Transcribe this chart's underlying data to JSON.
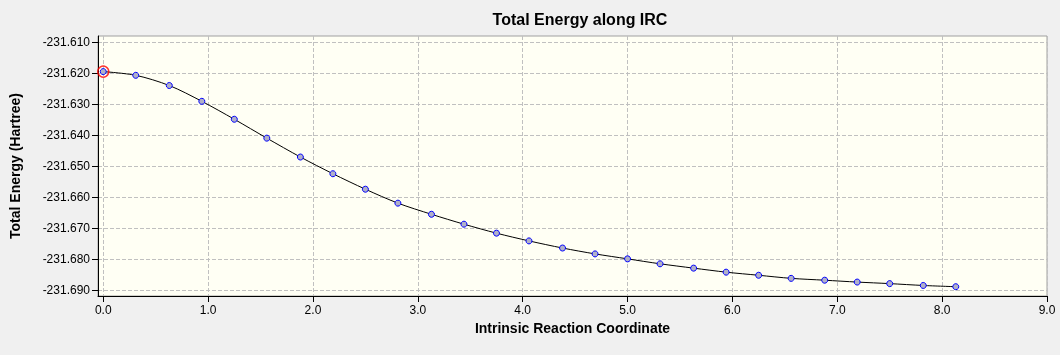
{
  "chart_data": {
    "type": "line",
    "title": "Total Energy along IRC",
    "xlabel": "Intrinsic Reaction Coordinate",
    "ylabel": "Total Energy (Hartree)",
    "xlim": [
      -0.05,
      9.0
    ],
    "xticks": [
      {
        "value": 0,
        "label": "0.0"
      },
      {
        "value": 1,
        "label": "1.0"
      },
      {
        "value": 2,
        "label": "2.0"
      },
      {
        "value": 3,
        "label": "3.0"
      },
      {
        "value": 4,
        "label": "4.0"
      },
      {
        "value": 5,
        "label": "5.0"
      },
      {
        "value": 6,
        "label": "6.0"
      },
      {
        "value": 7,
        "label": "7.0"
      },
      {
        "value": 8,
        "label": "8.0"
      },
      {
        "value": 9,
        "label": "9.0"
      }
    ],
    "ylim": [
      -231.692,
      -231.608
    ],
    "yticks": [
      {
        "value": -231.69,
        "label": "-231.690"
      },
      {
        "value": -231.68,
        "label": "-231.680"
      },
      {
        "value": -231.67,
        "label": "-231.670"
      },
      {
        "value": -231.66,
        "label": "-231.660"
      },
      {
        "value": -231.65,
        "label": "-231.650"
      },
      {
        "value": -231.64,
        "label": "-231.640"
      },
      {
        "value": -231.63,
        "label": "-231.630"
      },
      {
        "value": -231.62,
        "label": "-231.620"
      },
      {
        "value": -231.61,
        "label": "-231.610"
      }
    ],
    "grid": true,
    "marker": "circle",
    "line_style": "solid",
    "series": [
      {
        "color": "#000000",
        "x": [
          0,
          0.31,
          0.63,
          0.94,
          1.25,
          1.56,
          1.88,
          2.19,
          2.5,
          2.81,
          3.13,
          3.44,
          3.75,
          4.06,
          4.38,
          4.69,
          5.0,
          5.31,
          5.63,
          5.94,
          6.25,
          6.56,
          6.88,
          7.19,
          7.5,
          7.82,
          8.13
        ],
        "values": [
          -231.6195,
          -231.6207,
          -231.624,
          -231.6291,
          -231.6349,
          -231.641,
          -231.6471,
          -231.6525,
          -231.6575,
          -231.662,
          -231.6656,
          -231.6688,
          -231.6717,
          -231.6742,
          -231.6765,
          -231.6784,
          -231.68,
          -231.6816,
          -231.683,
          -231.6843,
          -231.6853,
          -231.6863,
          -231.6869,
          -231.6875,
          -231.688,
          -231.6886,
          -231.689
        ]
      },
      {
        "type": "scatter",
        "color": "#ff0000",
        "x": [
          0
        ],
        "values": [
          -231.6195
        ]
      }
    ]
  }
}
